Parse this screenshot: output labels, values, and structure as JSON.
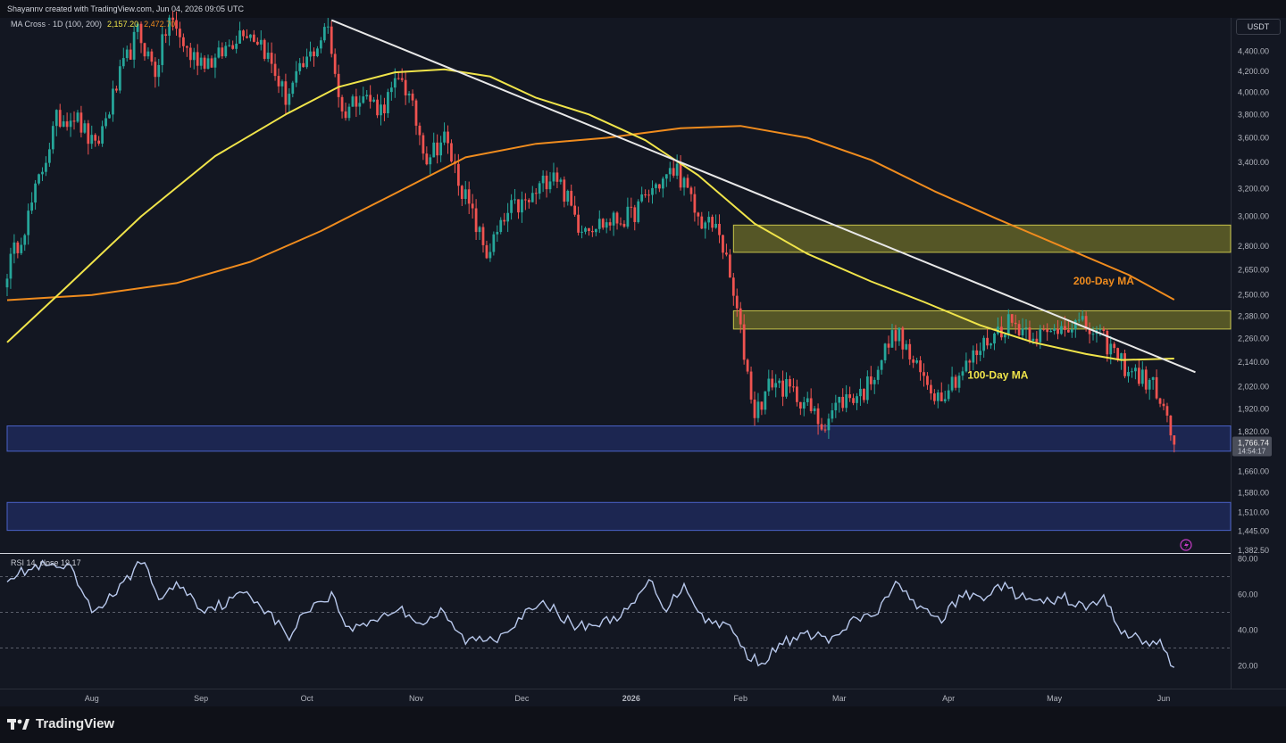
{
  "header": {
    "credit": "Shayannv created with TradingView.com, Jun 04, 2026 09:05 UTC",
    "indicator_name": "MA Cross · 1D (100, 200)",
    "ma100_value": "2,157.20",
    "ma200_value": "2,472.70",
    "currency": "USDT"
  },
  "footer": {
    "brand": "TradingView"
  },
  "colors": {
    "background": "#131722",
    "up": "#26a69a",
    "down": "#ef5350",
    "ma100": "#f0e44a",
    "ma200": "#f08c1e",
    "trendline": "#e8e8e8",
    "resistance_zone": "#8c8a2a",
    "support_zone": "#283a8c",
    "rsi": "#b8c8ec"
  },
  "chart_data": [
    {
      "type": "candlestick",
      "title": "",
      "y_scale": "log",
      "ylim": [
        1382.5,
        4600
      ],
      "y_ticks": [
        {
          "value": 4400,
          "label": "4,400.00"
        },
        {
          "value": 4200,
          "label": "4,200.00"
        },
        {
          "value": 4000,
          "label": "4,000.00"
        },
        {
          "value": 3800,
          "label": "3,800.00"
        },
        {
          "value": 3600,
          "label": "3,600.00"
        },
        {
          "value": 3400,
          "label": "3,400.00"
        },
        {
          "value": 3200,
          "label": "3,200.00"
        },
        {
          "value": 3000,
          "label": "3,000.00"
        },
        {
          "value": 2800,
          "label": "2,800.00"
        },
        {
          "value": 2650,
          "label": "2,650.00"
        },
        {
          "value": 2500,
          "label": "2,500.00"
        },
        {
          "value": 2380,
          "label": "2,380.00"
        },
        {
          "value": 2260,
          "label": "2,260.00"
        },
        {
          "value": 2140,
          "label": "2,140.00"
        },
        {
          "value": 2020,
          "label": "2,020.00"
        },
        {
          "value": 1920,
          "label": "1,920.00"
        },
        {
          "value": 1820,
          "label": "1,820.00"
        },
        {
          "value": 1660,
          "label": "1,660.00"
        },
        {
          "value": 1580,
          "label": "1,580.00"
        },
        {
          "value": 1510,
          "label": "1,510.00"
        },
        {
          "value": 1445,
          "label": "1,445.00"
        },
        {
          "value": 1382.5,
          "label": "1,382.50"
        }
      ],
      "x_ticks": [
        {
          "date": "2025-08-01",
          "label": "Aug",
          "bold": false
        },
        {
          "date": "2025-09-01",
          "label": "Sep",
          "bold": false
        },
        {
          "date": "2025-10-01",
          "label": "Oct",
          "bold": false
        },
        {
          "date": "2025-11-01",
          "label": "Nov",
          "bold": false
        },
        {
          "date": "2025-12-01",
          "label": "Dec",
          "bold": false
        },
        {
          "date": "2026-01-01",
          "label": "2026",
          "bold": true
        },
        {
          "date": "2026-02-01",
          "label": "Feb",
          "bold": false
        },
        {
          "date": "2026-03-01",
          "label": "Mar",
          "bold": false
        },
        {
          "date": "2026-04-01",
          "label": "Apr",
          "bold": false
        },
        {
          "date": "2026-05-01",
          "label": "May",
          "bold": false
        },
        {
          "date": "2026-06-01",
          "label": "Jun",
          "bold": false
        }
      ],
      "x_range": [
        "2025-07-08",
        "2026-06-20"
      ],
      "price_waypoints": [
        {
          "date": "2025-07-08",
          "close": 2650
        },
        {
          "date": "2025-07-14",
          "close": 3000
        },
        {
          "date": "2025-07-22",
          "close": 3750
        },
        {
          "date": "2025-07-27",
          "close": 3800
        },
        {
          "date": "2025-08-02",
          "close": 3500
        },
        {
          "date": "2025-08-09",
          "close": 4150
        },
        {
          "date": "2025-08-14",
          "close": 4600
        },
        {
          "date": "2025-08-19",
          "close": 4200
        },
        {
          "date": "2025-08-23",
          "close": 4750
        },
        {
          "date": "2025-08-29",
          "close": 4350
        },
        {
          "date": "2025-09-05",
          "close": 4300
        },
        {
          "date": "2025-09-13",
          "close": 4650
        },
        {
          "date": "2025-09-18",
          "close": 4500
        },
        {
          "date": "2025-09-25",
          "close": 3950
        },
        {
          "date": "2025-10-01",
          "close": 4300
        },
        {
          "date": "2025-10-07",
          "close": 4650
        },
        {
          "date": "2025-10-11",
          "close": 3800
        },
        {
          "date": "2025-10-16",
          "close": 4000
        },
        {
          "date": "2025-10-22",
          "close": 3850
        },
        {
          "date": "2025-10-28",
          "close": 4150
        },
        {
          "date": "2025-11-04",
          "close": 3450
        },
        {
          "date": "2025-11-09",
          "close": 3600
        },
        {
          "date": "2025-11-14",
          "close": 3200
        },
        {
          "date": "2025-11-21",
          "close": 2750
        },
        {
          "date": "2025-11-28",
          "close": 3050
        },
        {
          "date": "2025-12-03",
          "close": 3100
        },
        {
          "date": "2025-12-10",
          "close": 3350
        },
        {
          "date": "2025-12-17",
          "close": 2950
        },
        {
          "date": "2025-12-24",
          "close": 2950
        },
        {
          "date": "2026-01-01",
          "close": 3000
        },
        {
          "date": "2026-01-07",
          "close": 3200
        },
        {
          "date": "2026-01-14",
          "close": 3350
        },
        {
          "date": "2026-01-20",
          "close": 2980
        },
        {
          "date": "2026-01-26",
          "close": 2900
        },
        {
          "date": "2026-01-31",
          "close": 2400
        },
        {
          "date": "2026-02-05",
          "close": 1900
        },
        {
          "date": "2026-02-10",
          "close": 2050
        },
        {
          "date": "2026-02-18",
          "close": 1970
        },
        {
          "date": "2026-02-24",
          "close": 1850
        },
        {
          "date": "2026-03-01",
          "close": 1950
        },
        {
          "date": "2026-03-08",
          "close": 2000
        },
        {
          "date": "2026-03-17",
          "close": 2300
        },
        {
          "date": "2026-03-23",
          "close": 2100
        },
        {
          "date": "2026-03-29",
          "close": 1980
        },
        {
          "date": "2026-04-05",
          "close": 2100
        },
        {
          "date": "2026-04-12",
          "close": 2250
        },
        {
          "date": "2026-04-18",
          "close": 2350
        },
        {
          "date": "2026-04-24",
          "close": 2300
        },
        {
          "date": "2026-04-29",
          "close": 2270
        },
        {
          "date": "2026-05-04",
          "close": 2350
        },
        {
          "date": "2026-05-10",
          "close": 2320
        },
        {
          "date": "2026-05-16",
          "close": 2230
        },
        {
          "date": "2026-05-21",
          "close": 2120
        },
        {
          "date": "2026-05-26",
          "close": 2060
        },
        {
          "date": "2026-05-30",
          "close": 2010
        },
        {
          "date": "2026-06-04",
          "close": 1766.74
        }
      ],
      "ma100_path": [
        {
          "date": "2025-07-08",
          "value": 2240
        },
        {
          "date": "2025-07-25",
          "value": 2550
        },
        {
          "date": "2025-08-15",
          "value": 3000
        },
        {
          "date": "2025-09-05",
          "value": 3450
        },
        {
          "date": "2025-09-25",
          "value": 3800
        },
        {
          "date": "2025-10-10",
          "value": 4050
        },
        {
          "date": "2025-10-26",
          "value": 4190
        },
        {
          "date": "2025-11-09",
          "value": 4220
        },
        {
          "date": "2025-11-22",
          "value": 4150
        },
        {
          "date": "2025-12-05",
          "value": 3950
        },
        {
          "date": "2025-12-20",
          "value": 3800
        },
        {
          "date": "2026-01-05",
          "value": 3580
        },
        {
          "date": "2026-01-20",
          "value": 3300
        },
        {
          "date": "2026-02-05",
          "value": 2950
        },
        {
          "date": "2026-02-20",
          "value": 2750
        },
        {
          "date": "2026-03-10",
          "value": 2580
        },
        {
          "date": "2026-03-25",
          "value": 2460
        },
        {
          "date": "2026-04-10",
          "value": 2330
        },
        {
          "date": "2026-04-25",
          "value": 2240
        },
        {
          "date": "2026-05-10",
          "value": 2180
        },
        {
          "date": "2026-05-20",
          "value": 2150
        },
        {
          "date": "2026-06-04",
          "value": 2157.2
        }
      ],
      "ma200_path": [
        {
          "date": "2025-07-08",
          "value": 2470
        },
        {
          "date": "2025-08-01",
          "value": 2500
        },
        {
          "date": "2025-08-25",
          "value": 2570
        },
        {
          "date": "2025-09-15",
          "value": 2700
        },
        {
          "date": "2025-10-05",
          "value": 2900
        },
        {
          "date": "2025-10-25",
          "value": 3150
        },
        {
          "date": "2025-11-15",
          "value": 3440
        },
        {
          "date": "2025-12-05",
          "value": 3550
        },
        {
          "date": "2025-12-25",
          "value": 3600
        },
        {
          "date": "2026-01-15",
          "value": 3680
        },
        {
          "date": "2026-02-01",
          "value": 3700
        },
        {
          "date": "2026-02-20",
          "value": 3600
        },
        {
          "date": "2026-03-10",
          "value": 3420
        },
        {
          "date": "2026-03-28",
          "value": 3180
        },
        {
          "date": "2026-04-15",
          "value": 2980
        },
        {
          "date": "2026-05-05",
          "value": 2780
        },
        {
          "date": "2026-05-22",
          "value": 2620
        },
        {
          "date": "2026-06-04",
          "value": 2472.7
        }
      ],
      "trendline": {
        "start": {
          "date": "2025-10-08",
          "value": 4730
        },
        "end": {
          "date": "2026-06-10",
          "value": 2090
        }
      },
      "zones": [
        {
          "kind": "resistance",
          "from": "2026-01-30",
          "to": "2026-06-20",
          "low": 2760,
          "high": 2940
        },
        {
          "kind": "resistance",
          "from": "2026-01-30",
          "to": "2026-06-20",
          "low": 2310,
          "high": 2410
        },
        {
          "kind": "support",
          "from": "2025-07-08",
          "to": "2026-06-20",
          "low": 1740,
          "high": 1845
        },
        {
          "kind": "support",
          "from": "2025-07-08",
          "to": "2026-06-20",
          "low": 1448,
          "high": 1545
        }
      ],
      "annotations": [
        {
          "text": "200-Day MA",
          "date": "2026-05-15",
          "value": 2560,
          "color": "#f08c1e"
        },
        {
          "text": "100-Day MA",
          "date": "2026-04-15",
          "value": 2060,
          "color": "#f0e44a"
        }
      ],
      "last_price": {
        "value": 1766.74,
        "label": "1,766.74",
        "countdown": "14:54:17"
      }
    },
    {
      "type": "line",
      "title": "RSI 14, close",
      "value_label": "19.17",
      "ylim": [
        10,
        80
      ],
      "y_ticks": [
        {
          "value": 80,
          "label": "80.00"
        },
        {
          "value": 60,
          "label": "60.00"
        },
        {
          "value": 40,
          "label": "40.00"
        },
        {
          "value": 20,
          "label": "20.00"
        }
      ],
      "levels": [
        70,
        50,
        30
      ],
      "series": [
        {
          "date": "2025-07-08",
          "value": 70
        },
        {
          "date": "2025-07-18",
          "value": 76
        },
        {
          "date": "2025-07-26",
          "value": 74
        },
        {
          "date": "2025-08-01",
          "value": 50
        },
        {
          "date": "2025-08-10",
          "value": 65
        },
        {
          "date": "2025-08-15",
          "value": 80
        },
        {
          "date": "2025-08-20",
          "value": 58
        },
        {
          "date": "2025-08-26",
          "value": 66
        },
        {
          "date": "2025-09-01",
          "value": 52
        },
        {
          "date": "2025-09-08",
          "value": 55
        },
        {
          "date": "2025-09-14",
          "value": 62
        },
        {
          "date": "2025-09-20",
          "value": 50
        },
        {
          "date": "2025-09-26",
          "value": 36
        },
        {
          "date": "2025-10-01",
          "value": 52
        },
        {
          "date": "2025-10-08",
          "value": 60
        },
        {
          "date": "2025-10-13",
          "value": 40
        },
        {
          "date": "2025-10-20",
          "value": 46
        },
        {
          "date": "2025-10-27",
          "value": 52
        },
        {
          "date": "2025-11-03",
          "value": 44
        },
        {
          "date": "2025-11-08",
          "value": 50
        },
        {
          "date": "2025-11-15",
          "value": 34
        },
        {
          "date": "2025-11-24",
          "value": 36
        },
        {
          "date": "2025-12-01",
          "value": 48
        },
        {
          "date": "2025-12-08",
          "value": 55
        },
        {
          "date": "2025-12-16",
          "value": 42
        },
        {
          "date": "2025-12-24",
          "value": 44
        },
        {
          "date": "2026-01-01",
          "value": 52
        },
        {
          "date": "2026-01-06",
          "value": 68
        },
        {
          "date": "2026-01-11",
          "value": 52
        },
        {
          "date": "2026-01-16",
          "value": 66
        },
        {
          "date": "2026-01-22",
          "value": 45
        },
        {
          "date": "2026-01-28",
          "value": 44
        },
        {
          "date": "2026-02-03",
          "value": 26
        },
        {
          "date": "2026-02-07",
          "value": 22
        },
        {
          "date": "2026-02-14",
          "value": 34
        },
        {
          "date": "2026-02-22",
          "value": 38
        },
        {
          "date": "2026-02-27",
          "value": 34
        },
        {
          "date": "2026-03-05",
          "value": 45
        },
        {
          "date": "2026-03-12",
          "value": 50
        },
        {
          "date": "2026-03-18",
          "value": 68
        },
        {
          "date": "2026-03-23",
          "value": 52
        },
        {
          "date": "2026-03-30",
          "value": 46
        },
        {
          "date": "2026-04-05",
          "value": 60
        },
        {
          "date": "2026-04-10",
          "value": 58
        },
        {
          "date": "2026-04-16",
          "value": 65
        },
        {
          "date": "2026-04-22",
          "value": 58
        },
        {
          "date": "2026-04-28",
          "value": 55
        },
        {
          "date": "2026-05-04",
          "value": 58
        },
        {
          "date": "2026-05-10",
          "value": 52
        },
        {
          "date": "2026-05-15",
          "value": 58
        },
        {
          "date": "2026-05-20",
          "value": 40
        },
        {
          "date": "2026-05-26",
          "value": 34
        },
        {
          "date": "2026-05-31",
          "value": 32
        },
        {
          "date": "2026-06-04",
          "value": 19.17
        }
      ]
    }
  ]
}
